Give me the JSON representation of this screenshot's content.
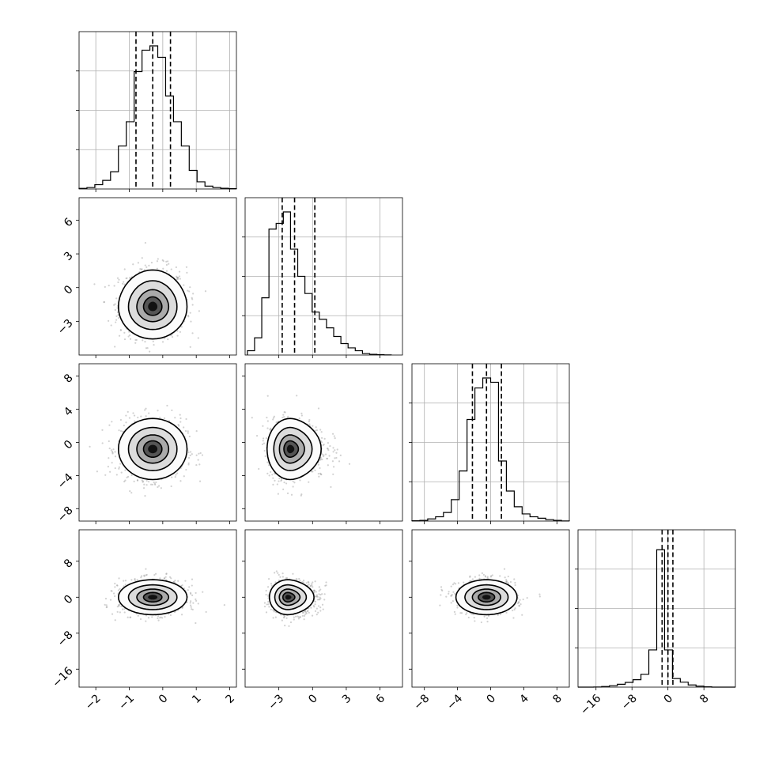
{
  "chart_data": {
    "type": "corner",
    "grid": true,
    "params": [
      {
        "range": [
          -2.5,
          2.2
        ],
        "ticks": [
          -2,
          -1,
          0,
          1,
          2
        ],
        "tick_labels": [
          "−2",
          "−1",
          "0",
          "1",
          "2"
        ],
        "quantiles": [
          -0.8,
          -0.3,
          0.23
        ],
        "hist_range": [
          -2.5,
          2.2
        ],
        "hist": [
          0.004,
          0.01,
          0.03,
          0.06,
          0.12,
          0.3,
          0.47,
          0.82,
          0.97,
          1.0,
          0.92,
          0.65,
          0.47,
          0.3,
          0.13,
          0.05,
          0.02,
          0.01,
          0.005,
          0.002
        ]
      },
      {
        "range": [
          -6,
          8
        ],
        "ticks": [
          -3,
          0,
          3,
          6
        ],
        "tick_labels": [
          "−3",
          "0",
          "3",
          "6"
        ],
        "quantiles": [
          -2.7,
          -1.6,
          0.2
        ],
        "hist_range": [
          -5.8,
          7.0
        ],
        "hist": [
          0.03,
          0.12,
          0.4,
          0.88,
          0.92,
          1.0,
          0.74,
          0.55,
          0.43,
          0.3,
          0.25,
          0.19,
          0.13,
          0.08,
          0.05,
          0.03,
          0.01,
          0.005,
          0.003,
          0.001
        ]
      },
      {
        "range": [
          -9.5,
          9.5
        ],
        "ticks": [
          -8,
          -4,
          0,
          4,
          8
        ],
        "tick_labels": [
          "−8",
          "−4",
          "0",
          "4",
          "8"
        ],
        "quantiles": [
          -2.2,
          -0.5,
          1.3
        ],
        "hist_range": [
          -9.5,
          9.5
        ],
        "hist": [
          0.002,
          0.005,
          0.015,
          0.03,
          0.06,
          0.15,
          0.35,
          0.71,
          0.93,
          1.0,
          0.97,
          0.42,
          0.21,
          0.1,
          0.05,
          0.03,
          0.02,
          0.01,
          0.005,
          0.001
        ]
      },
      {
        "range": [
          -20,
          15
        ],
        "ticks": [
          -16,
          -8,
          0,
          8
        ],
        "tick_labels": [
          "−16",
          "−8",
          "0",
          "8"
        ],
        "quantiles": [
          -1.3,
          0.0,
          1.1
        ],
        "hist_range": [
          -20,
          15
        ],
        "hist": [
          0.0,
          0.0,
          0.001,
          0.004,
          0.01,
          0.02,
          0.033,
          0.052,
          0.09,
          0.26,
          0.96,
          0.26,
          0.06,
          0.035,
          0.015,
          0.007,
          0.002,
          0.0,
          0.0,
          0.0
        ]
      }
    ],
    "pairs": [
      {
        "row": 1,
        "col": 0,
        "mean": [
          -0.3,
          -1.7
        ],
        "sd": [
          0.5,
          1.4
        ],
        "skew_y": 0.4,
        "contour_radii": [
          0.5,
          1.0,
          1.5,
          2.0
        ]
      },
      {
        "row": 2,
        "col": 0,
        "mean": [
          -0.3,
          -0.8
        ],
        "sd": [
          0.5,
          1.8
        ],
        "skew_y": 0.0,
        "contour_radii": [
          0.5,
          1.0,
          1.5,
          2.0
        ]
      },
      {
        "row": 2,
        "col": 1,
        "mean": [
          -2.0,
          -0.8
        ],
        "sd": [
          1.0,
          1.8
        ],
        "skew_x": 1.0,
        "contour_radii": [
          0.5,
          1.0,
          1.5,
          2.0
        ]
      },
      {
        "row": 3,
        "col": 0,
        "mean": [
          -0.3,
          0.0
        ],
        "sd": [
          0.5,
          1.9
        ],
        "skew_y": 0.0,
        "contour_radii": [
          0.5,
          1.0,
          1.5,
          2.0
        ]
      },
      {
        "row": 3,
        "col": 1,
        "mean": [
          -2.2,
          0.0
        ],
        "sd": [
          0.8,
          1.9
        ],
        "skew_x": 1.2,
        "contour_radii": [
          0.5,
          1.0,
          1.5,
          2.0
        ]
      },
      {
        "row": 3,
        "col": 2,
        "mean": [
          -0.5,
          0.0
        ],
        "sd": [
          1.8,
          1.9
        ],
        "skew_x": 0.0,
        "contour_radii": [
          0.5,
          1.0,
          1.5,
          2.0
        ]
      }
    ]
  }
}
